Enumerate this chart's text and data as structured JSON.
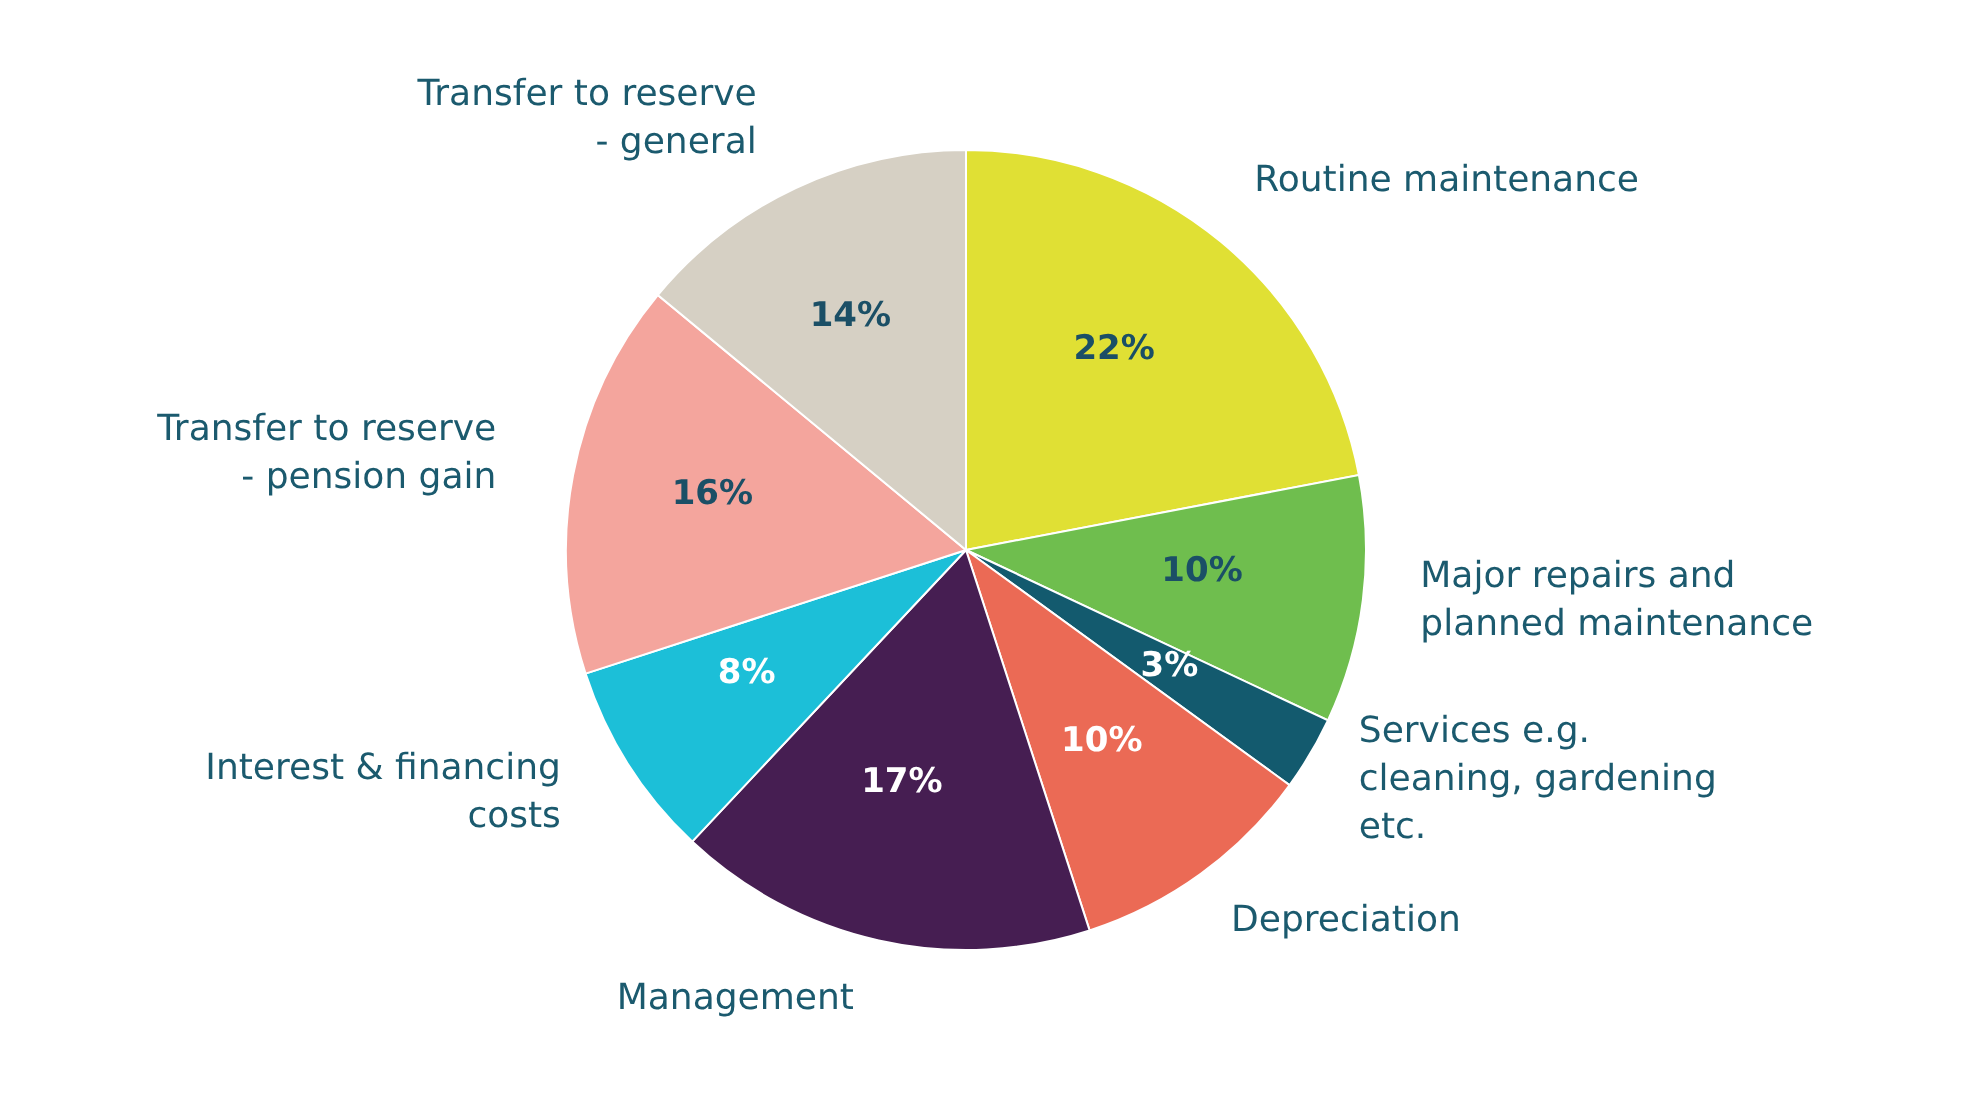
{
  "chart_data": {
    "type": "pie",
    "categories": [
      "Routine maintenance",
      "Major repairs and planned maintenance",
      "Services e.g. cleaning, gardening etc.",
      "Depreciation",
      "Management",
      "Interest & financing costs",
      "Transfer to reserve - pension gain",
      "Transfer to reserve - general"
    ],
    "values": [
      22,
      10,
      3,
      10,
      17,
      8,
      16,
      14
    ],
    "colors": [
      "#e0e034",
      "#6fbe4e",
      "#135a6e",
      "#eb6a55",
      "#461e52",
      "#1cbfd8",
      "#f4a59d",
      "#d6d0c4"
    ],
    "value_labels": [
      "22%",
      "10%",
      "3%",
      "10%",
      "17%",
      "8%",
      "16%",
      "14%"
    ]
  }
}
